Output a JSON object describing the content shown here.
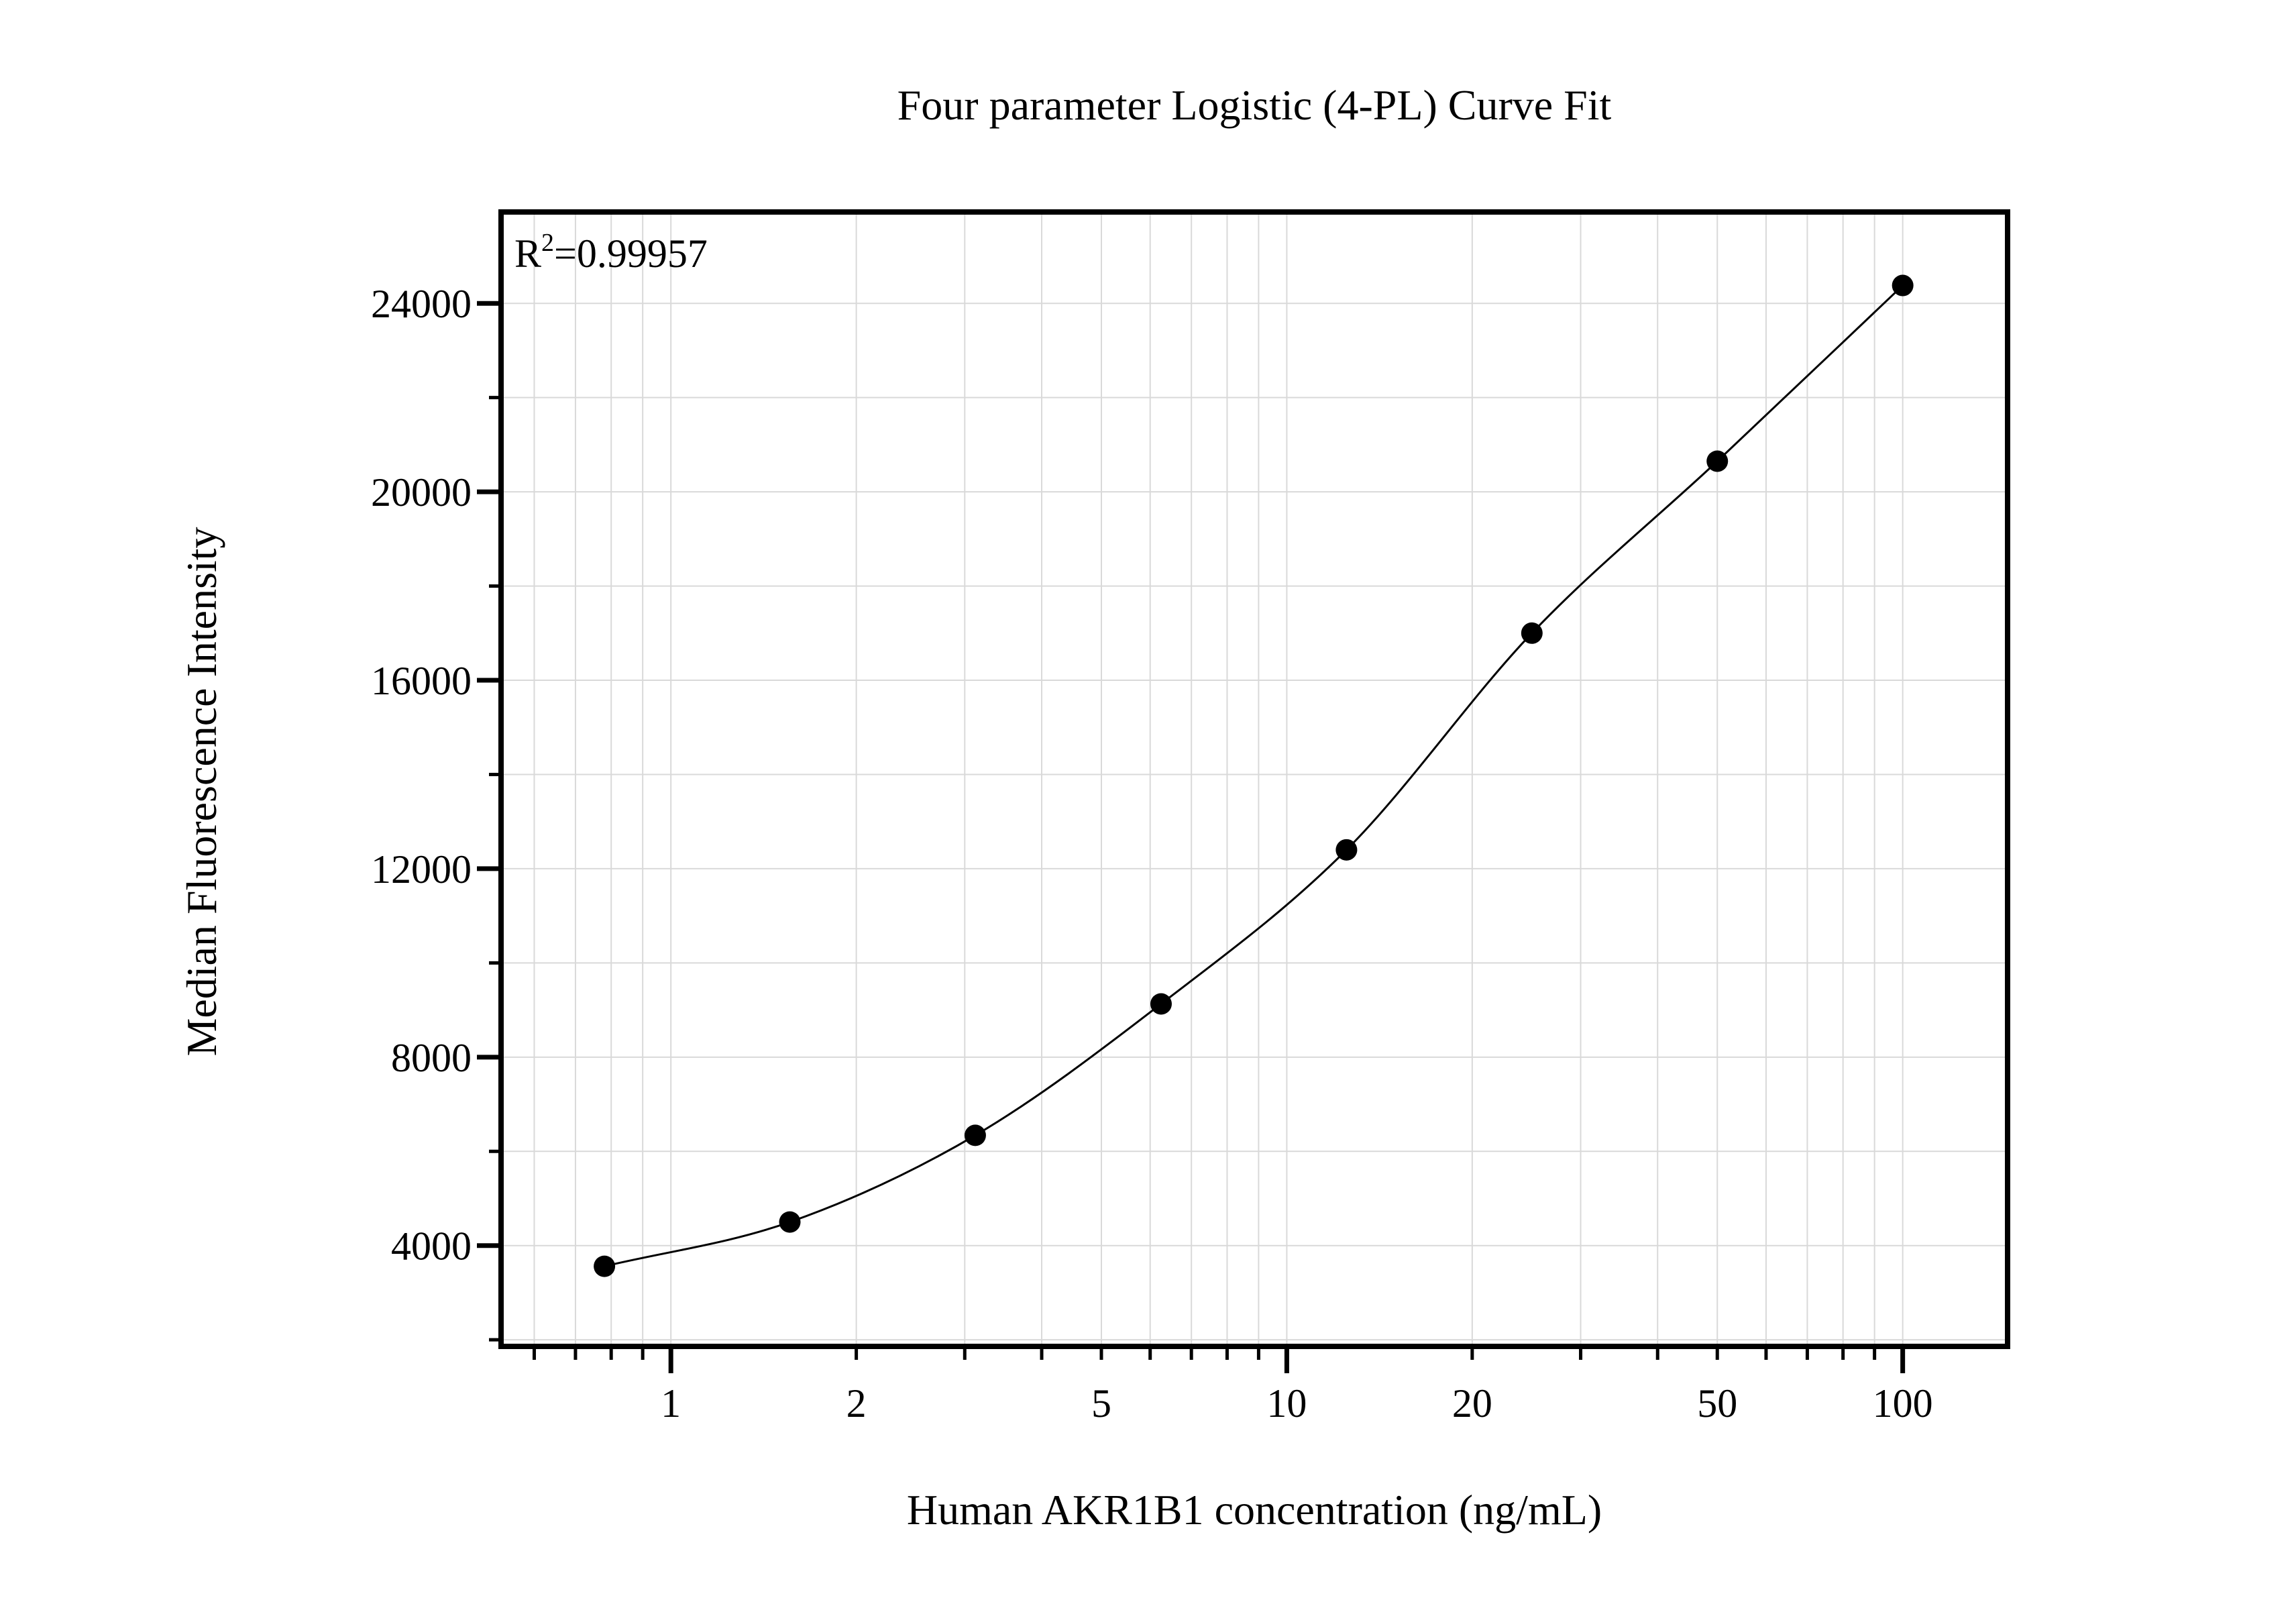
{
  "chart_data": {
    "type": "scatter",
    "title": "Four parameter Logistic (4-PL) Curve Fit",
    "xlabel": "Human AKR1B1 concentration (ng/mL)",
    "ylabel": "Median Fluorescence Intensity",
    "annotation": {
      "r_label": "R",
      "r_exponent": "2",
      "r_value": "=0.99957"
    },
    "series": [
      {
        "name": "standard-curve-points",
        "x": [
          0.78,
          1.56,
          3.12,
          6.25,
          12.5,
          25,
          50,
          100
        ],
        "y": [
          3560,
          4500,
          6340,
          9130,
          12400,
          17000,
          20650,
          24380
        ]
      }
    ],
    "fit": "4PL curve through all points, drawn from first to last point",
    "x_scale": "log",
    "y_scale": "linear",
    "xlim": [
      0.53,
      148
    ],
    "ylim": [
      1860,
      25940
    ],
    "grid": true,
    "legend": "none",
    "x_ticks": {
      "major": [
        1,
        10,
        100
      ],
      "minor": [
        0.6,
        0.7,
        0.8,
        0.9,
        2,
        3,
        4,
        5,
        6,
        7,
        8,
        9,
        20,
        30,
        40,
        50,
        60,
        70,
        80,
        90
      ],
      "labels": [
        {
          "value": 1,
          "label": "1"
        },
        {
          "value": 2,
          "label": "2"
        },
        {
          "value": 5,
          "label": "5"
        },
        {
          "value": 10,
          "label": "10"
        },
        {
          "value": 20,
          "label": "20"
        },
        {
          "value": 50,
          "label": "50"
        },
        {
          "value": 100,
          "label": "100"
        }
      ]
    },
    "y_ticks": {
      "major": [
        4000,
        8000,
        12000,
        16000,
        20000,
        24000
      ],
      "minor": [
        2000,
        6000,
        10000,
        14000,
        18000,
        22000
      ],
      "labels": [
        "4000",
        "8000",
        "12000",
        "16000",
        "20000",
        "24000"
      ]
    },
    "colors": {
      "background": "#ffffff",
      "axis": "#000000",
      "grid": "#d9d9d9",
      "marker": "#000000",
      "curve": "#000000",
      "text": "#000000"
    },
    "marker": {
      "shape": "circle",
      "radius_px": 16
    }
  }
}
